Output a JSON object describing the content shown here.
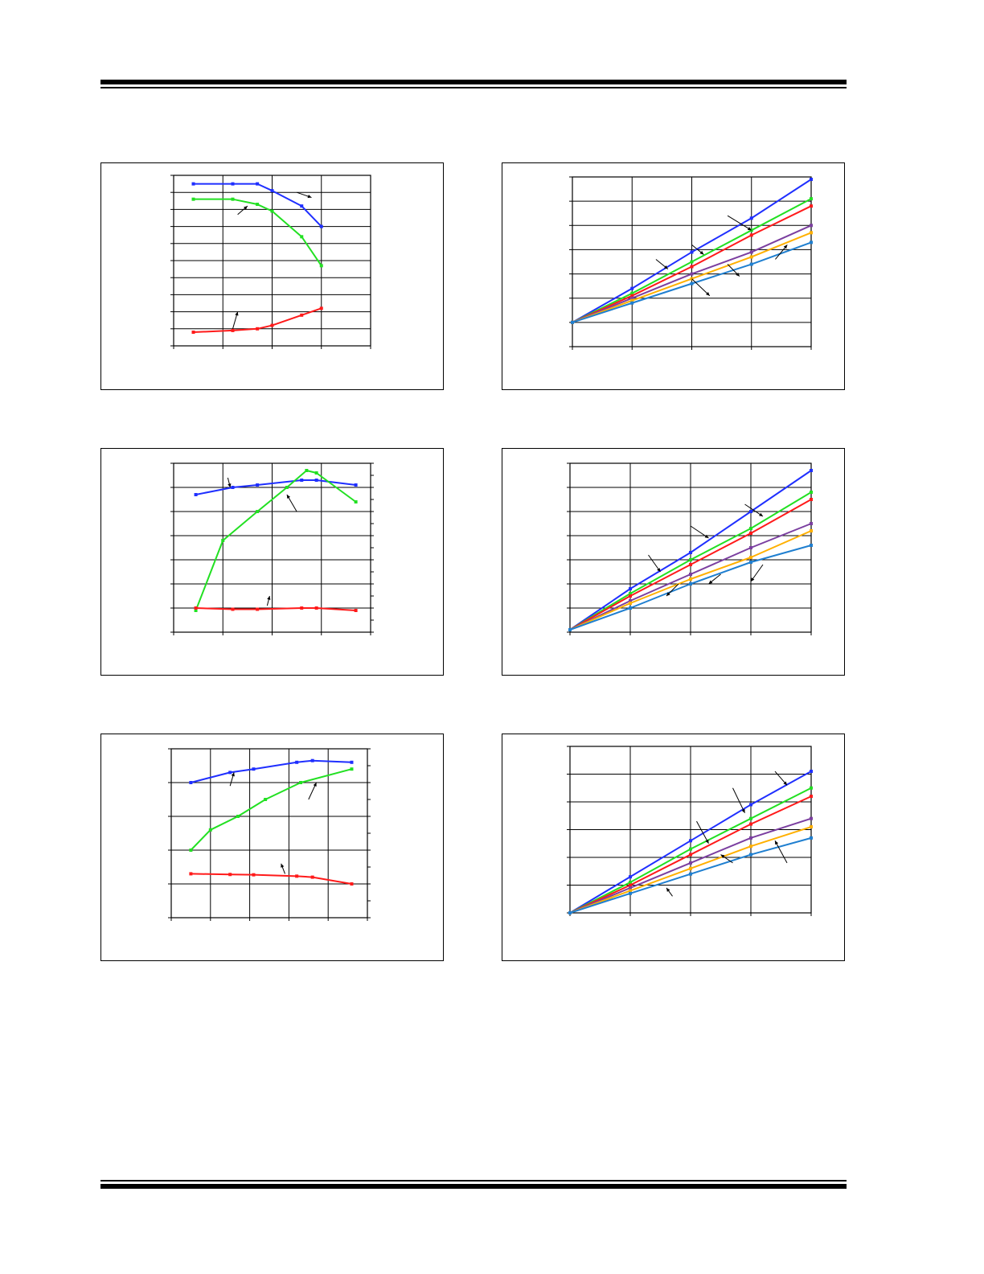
{
  "page": {
    "title": "",
    "colors": {
      "rule": "#000000",
      "grid": "#000000"
    }
  },
  "chart_data": [
    {
      "type": "line",
      "xlim": [
        0,
        4
      ],
      "ylim": [
        0,
        10
      ],
      "grid": true,
      "right_axis": false,
      "series": [
        {
          "color": "#1f2fff",
          "x": [
            0.4,
            1.2,
            1.7,
            2.0,
            2.6,
            3.0
          ],
          "y": [
            9.5,
            9.5,
            9.5,
            9.1,
            8.2,
            7.0
          ]
        },
        {
          "color": "#22e022",
          "x": [
            0.4,
            1.2,
            1.7,
            2.0,
            2.6,
            3.0
          ],
          "y": [
            8.6,
            8.6,
            8.3,
            7.9,
            6.4,
            4.7
          ]
        },
        {
          "color": "#ff1a1a",
          "x": [
            0.4,
            1.2,
            1.7,
            2.0,
            2.6,
            3.0
          ],
          "y": [
            0.8,
            0.9,
            1.0,
            1.2,
            1.8,
            2.2
          ]
        }
      ],
      "annotations": [
        {
          "x1": 2.5,
          "y1": 9.0,
          "x2": 2.8,
          "y2": 8.7
        },
        {
          "x1": 1.3,
          "y1": 7.7,
          "x2": 1.5,
          "y2": 8.2
        },
        {
          "x1": 1.2,
          "y1": 1.0,
          "x2": 1.3,
          "y2": 2.0
        }
      ]
    },
    {
      "type": "line",
      "xlim": [
        0,
        4
      ],
      "ylim": [
        0,
        7
      ],
      "grid": true,
      "right_axis": false,
      "series": [
        {
          "color": "#1f2fff",
          "x": [
            0,
            1,
            2,
            3,
            4
          ],
          "y": [
            1.0,
            2.4,
            3.9,
            5.3,
            6.9
          ]
        },
        {
          "color": "#22e022",
          "x": [
            0,
            1,
            2,
            3,
            4
          ],
          "y": [
            1.0,
            2.2,
            3.5,
            4.8,
            6.1
          ]
        },
        {
          "color": "#ff1a1a",
          "x": [
            0,
            1,
            2,
            3,
            4
          ],
          "y": [
            1.0,
            2.1,
            3.3,
            4.6,
            5.8
          ]
        },
        {
          "color": "#7b3fa0",
          "x": [
            0,
            1,
            2,
            3,
            4
          ],
          "y": [
            1.0,
            2.0,
            3.0,
            3.9,
            5.0
          ]
        },
        {
          "color": "#ffb000",
          "x": [
            0,
            1,
            2,
            3,
            4
          ],
          "y": [
            1.0,
            1.9,
            2.8,
            3.7,
            4.7
          ]
        },
        {
          "color": "#1f7fd0",
          "x": [
            0,
            1,
            2,
            3,
            4
          ],
          "y": [
            1.0,
            1.8,
            2.6,
            3.4,
            4.3
          ]
        }
      ],
      "annotations": [
        {
          "x1": 2.6,
          "y1": 5.4,
          "x2": 3.0,
          "y2": 4.8
        },
        {
          "x1": 2.0,
          "y1": 4.2,
          "x2": 2.2,
          "y2": 3.8
        },
        {
          "x1": 1.4,
          "y1": 3.6,
          "x2": 1.6,
          "y2": 3.2
        },
        {
          "x1": 3.4,
          "y1": 3.6,
          "x2": 3.6,
          "y2": 4.2
        },
        {
          "x1": 2.6,
          "y1": 3.4,
          "x2": 2.8,
          "y2": 2.9
        },
        {
          "x1": 2.0,
          "y1": 2.8,
          "x2": 2.3,
          "y2": 2.1
        }
      ]
    },
    {
      "type": "line",
      "xlim": [
        0,
        4
      ],
      "ylim": [
        0,
        7
      ],
      "grid": true,
      "right_axis": true,
      "series": [
        {
          "color": "#1f2fff",
          "x": [
            0.45,
            1.2,
            1.7,
            2.6,
            2.9,
            3.7
          ],
          "y": [
            5.7,
            6.0,
            6.1,
            6.3,
            6.3,
            6.1
          ]
        },
        {
          "color": "#22e022",
          "x": [
            0.45,
            1.0,
            1.7,
            2.3,
            2.7,
            2.9,
            3.7
          ],
          "y": [
            0.9,
            3.8,
            5.0,
            6.0,
            6.7,
            6.6,
            5.4
          ]
        },
        {
          "color": "#ff1a1a",
          "x": [
            0.45,
            1.2,
            1.7,
            2.6,
            2.9,
            3.7
          ],
          "y": [
            1.0,
            0.95,
            0.95,
            1.0,
            1.0,
            0.9
          ]
        }
      ],
      "annotations": [
        {
          "x1": 1.1,
          "y1": 6.4,
          "x2": 1.15,
          "y2": 6.0
        },
        {
          "x1": 2.5,
          "y1": 5.0,
          "x2": 2.3,
          "y2": 5.7
        },
        {
          "x1": 1.9,
          "y1": 1.1,
          "x2": 1.95,
          "y2": 1.5
        }
      ]
    },
    {
      "type": "line",
      "xlim": [
        0,
        4
      ],
      "ylim": [
        0,
        7
      ],
      "grid": true,
      "right_axis": false,
      "series": [
        {
          "color": "#1f2fff",
          "x": [
            0,
            1,
            2,
            3,
            4
          ],
          "y": [
            0.1,
            1.8,
            3.3,
            5.0,
            6.7
          ]
        },
        {
          "color": "#22e022",
          "x": [
            0,
            1,
            2,
            3,
            4
          ],
          "y": [
            0.1,
            1.6,
            3.0,
            4.3,
            5.8
          ]
        },
        {
          "color": "#ff1a1a",
          "x": [
            0,
            1,
            2,
            3,
            4
          ],
          "y": [
            0.1,
            1.5,
            2.8,
            4.1,
            5.5
          ]
        },
        {
          "color": "#7b3fa0",
          "x": [
            0,
            1,
            2,
            3,
            4
          ],
          "y": [
            0.1,
            1.3,
            2.4,
            3.5,
            4.5
          ]
        },
        {
          "color": "#ffb000",
          "x": [
            0,
            1,
            2,
            3,
            4
          ],
          "y": [
            0.1,
            1.2,
            2.2,
            3.1,
            4.2
          ]
        },
        {
          "color": "#1f7fd0",
          "x": [
            0,
            1,
            2,
            3,
            4
          ],
          "y": [
            0.1,
            1.0,
            2.0,
            2.9,
            3.6
          ]
        }
      ],
      "annotations": [
        {
          "x1": 2.9,
          "y1": 5.3,
          "x2": 3.2,
          "y2": 4.8
        },
        {
          "x1": 2.0,
          "y1": 4.4,
          "x2": 2.3,
          "y2": 3.9
        },
        {
          "x1": 1.3,
          "y1": 3.2,
          "x2": 1.5,
          "y2": 2.5
        },
        {
          "x1": 3.2,
          "y1": 2.8,
          "x2": 3.0,
          "y2": 2.1
        },
        {
          "x1": 2.5,
          "y1": 2.4,
          "x2": 2.3,
          "y2": 2.0
        },
        {
          "x1": 1.8,
          "y1": 2.0,
          "x2": 1.6,
          "y2": 1.5
        }
      ]
    },
    {
      "type": "line",
      "xlim": [
        0,
        5
      ],
      "ylim": [
        0,
        5
      ],
      "grid": true,
      "right_axis": true,
      "series": [
        {
          "color": "#1f2fff",
          "x": [
            0.5,
            1.5,
            2.1,
            3.2,
            3.6,
            4.6
          ],
          "y": [
            4.0,
            4.3,
            4.4,
            4.6,
            4.65,
            4.6
          ]
        },
        {
          "color": "#22e022",
          "x": [
            0.5,
            1.0,
            1.7,
            2.4,
            3.3,
            4.6
          ],
          "y": [
            2.0,
            2.6,
            3.0,
            3.5,
            4.0,
            4.4
          ]
        },
        {
          "color": "#ff1a1a",
          "x": [
            0.5,
            1.5,
            2.1,
            3.2,
            3.6,
            4.6
          ],
          "y": [
            1.3,
            1.28,
            1.27,
            1.23,
            1.2,
            1.0
          ]
        }
      ],
      "annotations": [
        {
          "x1": 1.5,
          "y1": 3.9,
          "x2": 1.6,
          "y2": 4.3
        },
        {
          "x1": 3.5,
          "y1": 3.5,
          "x2": 3.7,
          "y2": 4.0
        },
        {
          "x1": 2.9,
          "y1": 1.3,
          "x2": 2.8,
          "y2": 1.6
        }
      ]
    },
    {
      "type": "line",
      "xlim": [
        0,
        4
      ],
      "ylim": [
        0,
        6
      ],
      "grid": true,
      "right_axis": false,
      "series": [
        {
          "color": "#1f2fff",
          "x": [
            0,
            1,
            2,
            3,
            4
          ],
          "y": [
            0.0,
            1.3,
            2.6,
            3.9,
            5.1
          ]
        },
        {
          "color": "#22e022",
          "x": [
            0,
            1,
            2,
            3,
            4
          ],
          "y": [
            0.0,
            1.1,
            2.3,
            3.4,
            4.5
          ]
        },
        {
          "color": "#ff1a1a",
          "x": [
            0,
            1,
            2,
            3,
            4
          ],
          "y": [
            0.0,
            1.0,
            2.1,
            3.2,
            4.2
          ]
        },
        {
          "color": "#7b3fa0",
          "x": [
            0,
            1,
            2,
            3,
            4
          ],
          "y": [
            0.0,
            0.9,
            1.8,
            2.7,
            3.4
          ]
        },
        {
          "color": "#ffb000",
          "x": [
            0,
            1,
            2,
            3,
            4
          ],
          "y": [
            0.0,
            0.8,
            1.6,
            2.4,
            3.1
          ]
        },
        {
          "color": "#1f7fd0",
          "x": [
            0,
            1,
            2,
            3,
            4
          ],
          "y": [
            0.0,
            0.7,
            1.4,
            2.1,
            2.7
          ]
        }
      ],
      "annotations": [
        {
          "x1": 3.4,
          "y1": 5.1,
          "x2": 3.6,
          "y2": 4.6
        },
        {
          "x1": 2.7,
          "y1": 4.5,
          "x2": 2.9,
          "y2": 3.6
        },
        {
          "x1": 2.1,
          "y1": 3.3,
          "x2": 2.3,
          "y2": 2.5
        },
        {
          "x1": 3.6,
          "y1": 1.8,
          "x2": 3.4,
          "y2": 2.6
        },
        {
          "x1": 2.7,
          "y1": 1.8,
          "x2": 2.5,
          "y2": 2.1
        },
        {
          "x1": 1.7,
          "y1": 0.6,
          "x2": 1.6,
          "y2": 0.9
        }
      ]
    }
  ]
}
